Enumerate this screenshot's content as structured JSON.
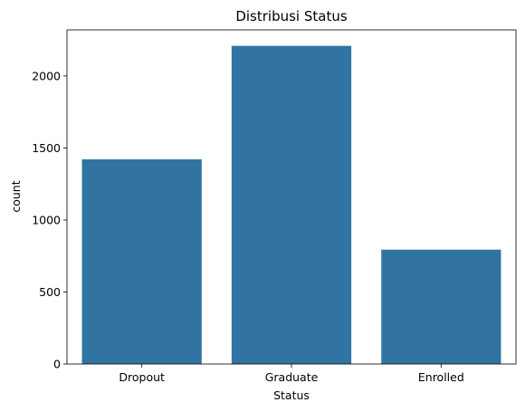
{
  "chart_data": {
    "type": "bar",
    "title": "Distribusi Status",
    "xlabel": "Status",
    "ylabel": "count",
    "categories": [
      "Dropout",
      "Graduate",
      "Enrolled"
    ],
    "values": [
      1421,
      2209,
      794
    ],
    "ylim": [
      0,
      2320
    ],
    "yticks": [
      0,
      500,
      1000,
      1500,
      2000
    ],
    "bar_color": "#3274a1",
    "grid": false,
    "legend": "none"
  }
}
